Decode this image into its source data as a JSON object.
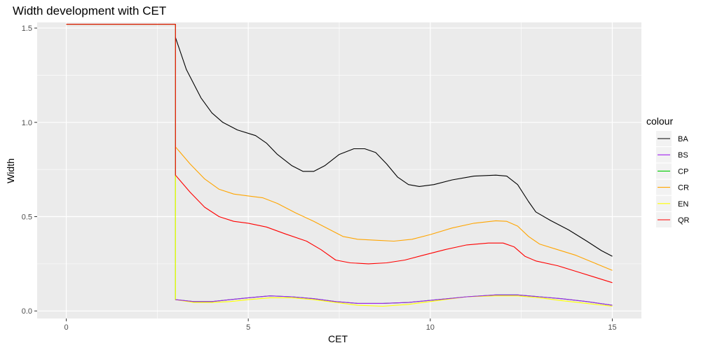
{
  "chart_data": {
    "type": "line",
    "title": "Width development with CET",
    "xlabel": "CET",
    "ylabel": "Width",
    "xlim": [
      -0.8,
      15.8
    ],
    "ylim": [
      -0.04,
      1.53
    ],
    "x_ticks": [
      0,
      5,
      10,
      15
    ],
    "x_tick_labels": [
      "0",
      "5",
      "10",
      "15"
    ],
    "y_ticks": [
      0.0,
      0.5,
      1.0,
      1.5
    ],
    "y_tick_labels": [
      "0.0",
      "0.5",
      "1.0",
      "1.5"
    ],
    "grid": true,
    "background": "#EBEBEB",
    "legend": {
      "title": "colour",
      "position": "right"
    },
    "series": [
      {
        "name": "BA",
        "color": "#000000",
        "points": [
          [
            3.0,
            1.45
          ],
          [
            3.3,
            1.28
          ],
          [
            3.7,
            1.13
          ],
          [
            4.0,
            1.05
          ],
          [
            4.3,
            1.0
          ],
          [
            4.7,
            0.96
          ],
          [
            5.2,
            0.93
          ],
          [
            5.5,
            0.89
          ],
          [
            5.8,
            0.83
          ],
          [
            6.2,
            0.77
          ],
          [
            6.5,
            0.74
          ],
          [
            6.8,
            0.74
          ],
          [
            7.1,
            0.77
          ],
          [
            7.5,
            0.83
          ],
          [
            7.9,
            0.86
          ],
          [
            8.2,
            0.86
          ],
          [
            8.5,
            0.84
          ],
          [
            8.8,
            0.78
          ],
          [
            9.1,
            0.71
          ],
          [
            9.4,
            0.67
          ],
          [
            9.7,
            0.66
          ],
          [
            10.1,
            0.67
          ],
          [
            10.6,
            0.695
          ],
          [
            11.2,
            0.715
          ],
          [
            11.8,
            0.72
          ],
          [
            12.1,
            0.715
          ],
          [
            12.4,
            0.67
          ],
          [
            12.7,
            0.58
          ],
          [
            12.9,
            0.525
          ],
          [
            13.3,
            0.48
          ],
          [
            13.8,
            0.43
          ],
          [
            14.3,
            0.37
          ],
          [
            14.7,
            0.32
          ],
          [
            15.0,
            0.29
          ]
        ]
      },
      {
        "name": "BS",
        "color": "#A020F0",
        "points": [
          [
            3.0,
            0.06
          ],
          [
            3.5,
            0.05
          ],
          [
            4.0,
            0.05
          ],
          [
            4.5,
            0.06
          ],
          [
            5.0,
            0.07
          ],
          [
            5.6,
            0.08
          ],
          [
            6.2,
            0.075
          ],
          [
            6.8,
            0.065
          ],
          [
            7.4,
            0.05
          ],
          [
            8.0,
            0.04
          ],
          [
            8.7,
            0.04
          ],
          [
            9.4,
            0.045
          ],
          [
            10.2,
            0.06
          ],
          [
            11.0,
            0.075
          ],
          [
            11.8,
            0.085
          ],
          [
            12.4,
            0.085
          ],
          [
            13.0,
            0.075
          ],
          [
            13.6,
            0.065
          ],
          [
            14.3,
            0.05
          ],
          [
            15.0,
            0.03
          ]
        ]
      },
      {
        "name": "CP",
        "color": "#00CD00",
        "points": [
          [
            0.0,
            1.52
          ],
          [
            3.0,
            1.52
          ],
          [
            3.0,
            0.06
          ],
          [
            3.5,
            0.05
          ],
          [
            4.0,
            0.05
          ],
          [
            4.5,
            0.06
          ],
          [
            5.0,
            0.07
          ],
          [
            5.6,
            0.08
          ],
          [
            6.2,
            0.075
          ],
          [
            6.8,
            0.065
          ],
          [
            7.4,
            0.05
          ],
          [
            8.0,
            0.04
          ],
          [
            8.7,
            0.04
          ],
          [
            9.4,
            0.045
          ],
          [
            10.2,
            0.06
          ],
          [
            11.0,
            0.075
          ],
          [
            11.8,
            0.085
          ],
          [
            12.4,
            0.085
          ],
          [
            13.0,
            0.075
          ],
          [
            13.6,
            0.065
          ],
          [
            14.3,
            0.05
          ],
          [
            15.0,
            0.03
          ]
        ]
      },
      {
        "name": "CR",
        "color": "#FFA500",
        "points": [
          [
            3.0,
            0.87
          ],
          [
            3.4,
            0.78
          ],
          [
            3.8,
            0.7
          ],
          [
            4.2,
            0.645
          ],
          [
            4.6,
            0.62
          ],
          [
            5.0,
            0.61
          ],
          [
            5.4,
            0.6
          ],
          [
            5.8,
            0.57
          ],
          [
            6.3,
            0.52
          ],
          [
            6.8,
            0.475
          ],
          [
            7.2,
            0.435
          ],
          [
            7.6,
            0.395
          ],
          [
            8.0,
            0.38
          ],
          [
            8.5,
            0.375
          ],
          [
            9.0,
            0.37
          ],
          [
            9.5,
            0.38
          ],
          [
            10.0,
            0.405
          ],
          [
            10.6,
            0.44
          ],
          [
            11.2,
            0.465
          ],
          [
            11.8,
            0.478
          ],
          [
            12.1,
            0.475
          ],
          [
            12.4,
            0.45
          ],
          [
            12.7,
            0.395
          ],
          [
            13.0,
            0.355
          ],
          [
            13.5,
            0.325
          ],
          [
            14.0,
            0.295
          ],
          [
            14.5,
            0.255
          ],
          [
            15.0,
            0.215
          ]
        ]
      },
      {
        "name": "EN",
        "color": "#FFFF00",
        "points": [
          [
            3.0,
            0.72
          ],
          [
            3.0,
            0.06
          ],
          [
            3.5,
            0.045
          ],
          [
            4.0,
            0.045
          ],
          [
            4.5,
            0.05
          ],
          [
            5.0,
            0.06
          ],
          [
            5.6,
            0.07
          ],
          [
            6.2,
            0.07
          ],
          [
            6.8,
            0.06
          ],
          [
            7.4,
            0.045
          ],
          [
            8.0,
            0.03
          ],
          [
            8.7,
            0.025
          ],
          [
            9.4,
            0.035
          ],
          [
            10.2,
            0.055
          ],
          [
            11.0,
            0.075
          ],
          [
            11.8,
            0.08
          ],
          [
            12.4,
            0.08
          ],
          [
            13.0,
            0.07
          ],
          [
            13.6,
            0.055
          ],
          [
            14.3,
            0.04
          ],
          [
            15.0,
            0.025
          ]
        ]
      },
      {
        "name": "QR",
        "color": "#FF0000",
        "points": [
          [
            0.0,
            1.52
          ],
          [
            3.0,
            1.52
          ],
          [
            3.0,
            0.72
          ],
          [
            3.4,
            0.63
          ],
          [
            3.8,
            0.55
          ],
          [
            4.2,
            0.5
          ],
          [
            4.6,
            0.475
          ],
          [
            5.0,
            0.465
          ],
          [
            5.5,
            0.445
          ],
          [
            6.0,
            0.41
          ],
          [
            6.6,
            0.37
          ],
          [
            7.0,
            0.325
          ],
          [
            7.4,
            0.27
          ],
          [
            7.8,
            0.255
          ],
          [
            8.3,
            0.25
          ],
          [
            8.8,
            0.255
          ],
          [
            9.3,
            0.27
          ],
          [
            9.8,
            0.295
          ],
          [
            10.4,
            0.325
          ],
          [
            11.0,
            0.35
          ],
          [
            11.6,
            0.36
          ],
          [
            12.0,
            0.36
          ],
          [
            12.3,
            0.34
          ],
          [
            12.6,
            0.29
          ],
          [
            12.9,
            0.265
          ],
          [
            13.5,
            0.24
          ],
          [
            14.0,
            0.21
          ],
          [
            14.5,
            0.18
          ],
          [
            15.0,
            0.15
          ]
        ]
      }
    ]
  }
}
